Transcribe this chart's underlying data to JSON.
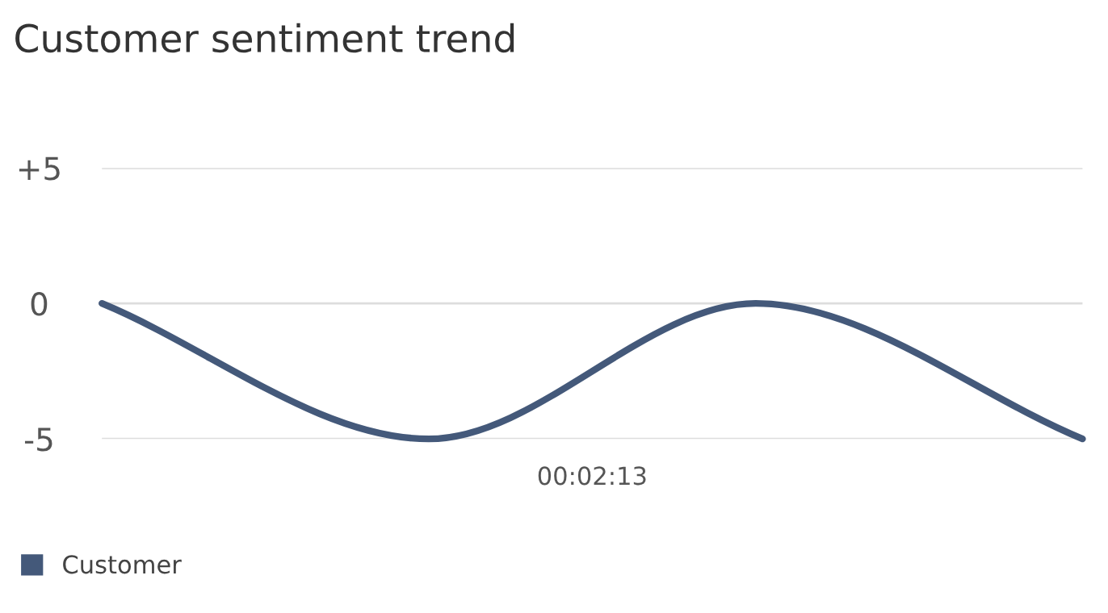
{
  "chart_data": {
    "type": "line",
    "title": "Customer sentiment trend",
    "categories": [
      null,
      null,
      null,
      null
    ],
    "series": [
      {
        "name": "Customer",
        "color": "#44597a",
        "values": [
          0,
          -5,
          0,
          -5
        ]
      }
    ],
    "ylim": [
      -5,
      5
    ],
    "yticks": [
      {
        "value": 5,
        "label": "+5"
      },
      {
        "value": 0,
        "label": "0"
      },
      {
        "value": -5,
        "label": "-5"
      }
    ],
    "annotations": [
      "00:02:13"
    ],
    "grid": "y",
    "legend": "bottom left",
    "marker": "none",
    "line_style": "solid"
  }
}
